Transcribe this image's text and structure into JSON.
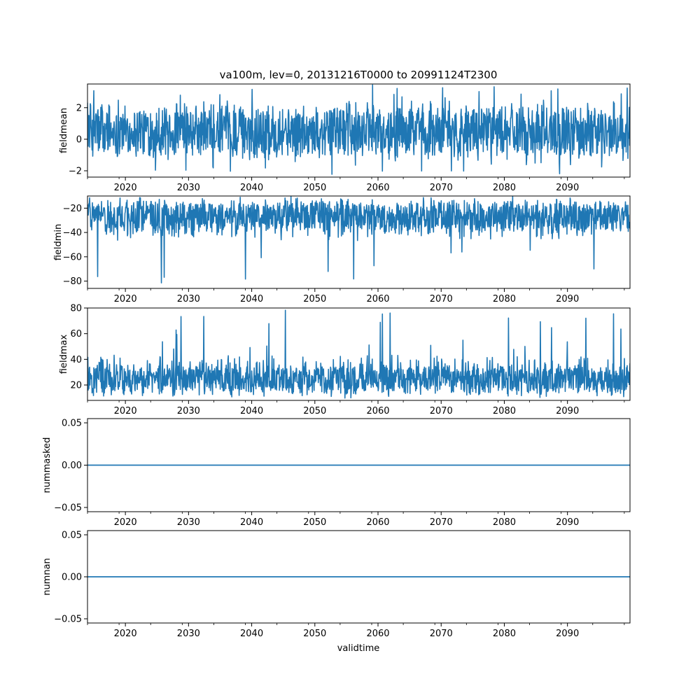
{
  "figure": {
    "title": "va100m, lev=0, 20131216T0000 to 20991124T2300",
    "xlabel": "validtime"
  },
  "chart_data": [
    {
      "type": "line",
      "ylabel": "fieldmean",
      "xlim": [
        2014.0,
        2099.9
      ],
      "ylim": [
        -2.4,
        3.5
      ],
      "yticks": [
        -2,
        0,
        2
      ],
      "xticks": [
        2020,
        2030,
        2040,
        2050,
        2060,
        2070,
        2080,
        2090
      ],
      "color": "#1f77b4",
      "style": "dense-noisy",
      "series": [
        {
          "name": "",
          "center": 0.5,
          "band_low": -0.9,
          "band_high": 1.9,
          "typical_min": -1.3,
          "typical_max": 2.3,
          "peak_max": 3.3,
          "peak_min": -2.1
        }
      ]
    },
    {
      "type": "line",
      "ylabel": "fieldmin",
      "xlim": [
        2014.0,
        2099.9
      ],
      "ylim": [
        -86,
        -10
      ],
      "yticks": [
        -80,
        -60,
        -40,
        -20
      ],
      "xticks": [
        2020,
        2030,
        2040,
        2050,
        2060,
        2070,
        2080,
        2090
      ],
      "color": "#1f77b4",
      "style": "dense-noisy",
      "series": [
        {
          "name": "",
          "center": -28,
          "band_low": -38,
          "band_high": -16,
          "typical_min": -45,
          "typical_max": -13,
          "peak_max": -12,
          "peak_min": -82
        }
      ]
    },
    {
      "type": "line",
      "ylabel": "fieldmax",
      "xlim": [
        2014.0,
        2099.9
      ],
      "ylim": [
        8,
        80
      ],
      "yticks": [
        20,
        40,
        60,
        80
      ],
      "xticks": [
        2020,
        2030,
        2040,
        2050,
        2060,
        2070,
        2080,
        2090
      ],
      "color": "#1f77b4",
      "style": "dense-noisy",
      "series": [
        {
          "name": "",
          "center": 24,
          "band_low": 15,
          "band_high": 34,
          "typical_min": 12,
          "typical_max": 42,
          "peak_max": 77,
          "peak_min": 11
        }
      ]
    },
    {
      "type": "line",
      "ylabel": "nummasked",
      "xlim": [
        2014.0,
        2099.9
      ],
      "ylim": [
        -0.055,
        0.055
      ],
      "yticks": [
        -0.05,
        0.0,
        0.05
      ],
      "ytick_labels": [
        "−0.05",
        "0.00",
        "0.05"
      ],
      "xticks": [
        2020,
        2030,
        2040,
        2050,
        2060,
        2070,
        2080,
        2090
      ],
      "color": "#1f77b4",
      "style": "constant",
      "series": [
        {
          "name": "",
          "x": [
            2014.0,
            2099.9
          ],
          "y": [
            0.0,
            0.0
          ]
        }
      ]
    },
    {
      "type": "line",
      "ylabel": "numnan",
      "xlim": [
        2014.0,
        2099.9
      ],
      "ylim": [
        -0.055,
        0.055
      ],
      "yticks": [
        -0.05,
        0.0,
        0.05
      ],
      "ytick_labels": [
        "−0.05",
        "0.00",
        "0.05"
      ],
      "xticks": [
        2020,
        2030,
        2040,
        2050,
        2060,
        2070,
        2080,
        2090
      ],
      "color": "#1f77b4",
      "style": "constant",
      "series": [
        {
          "name": "",
          "x": [
            2014.0,
            2099.9
          ],
          "y": [
            0.0,
            0.0
          ]
        }
      ]
    }
  ]
}
